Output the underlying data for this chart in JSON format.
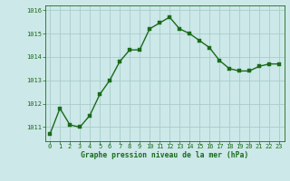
{
  "x": [
    0,
    1,
    2,
    3,
    4,
    5,
    6,
    7,
    8,
    9,
    10,
    11,
    12,
    13,
    14,
    15,
    16,
    17,
    18,
    19,
    20,
    21,
    22,
    23
  ],
  "y": [
    1010.7,
    1011.8,
    1011.1,
    1011.0,
    1011.5,
    1012.4,
    1013.0,
    1013.8,
    1014.3,
    1014.3,
    1015.2,
    1015.45,
    1015.7,
    1015.2,
    1015.0,
    1014.7,
    1014.4,
    1013.85,
    1013.5,
    1013.4,
    1013.4,
    1013.6,
    1013.7,
    1013.7
  ],
  "line_color": "#1a6b1a",
  "marker_color": "#1a6b1a",
  "bg_color": "#cce8e8",
  "grid_color": "#aacccc",
  "xlabel": "Graphe pression niveau de la mer (hPa)",
  "xlabel_color": "#1a6b1a",
  "tick_color": "#1a6b1a",
  "ylim": [
    1010.4,
    1016.2
  ],
  "yticks": [
    1011,
    1012,
    1013,
    1014,
    1015,
    1016
  ],
  "xticks": [
    0,
    1,
    2,
    3,
    4,
    5,
    6,
    7,
    8,
    9,
    10,
    11,
    12,
    13,
    14,
    15,
    16,
    17,
    18,
    19,
    20,
    21,
    22,
    23
  ],
  "marker_size": 2.5,
  "line_width": 1.0
}
